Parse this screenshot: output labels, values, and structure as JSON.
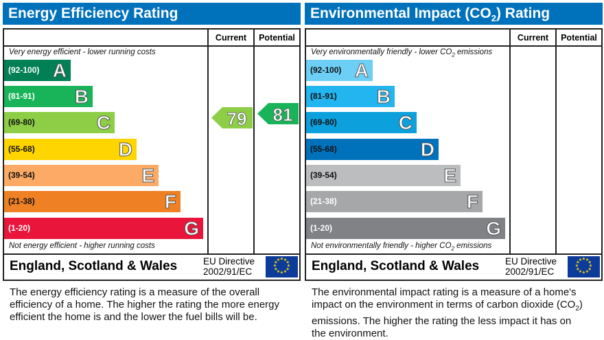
{
  "chart_data": [
    {
      "type": "table",
      "title": "Energy Efficiency Rating",
      "columns": [
        "Current",
        "Potential"
      ],
      "top_note": "Very energy efficient - lower running costs",
      "bottom_note": "Not energy efficient - higher running costs",
      "bands": [
        {
          "letter": "A",
          "range": "(92-100)",
          "color": "#008054",
          "text_color": "#ffffff"
        },
        {
          "letter": "B",
          "range": "(81-91)",
          "color": "#19b459",
          "text_color": "#ffffff"
        },
        {
          "letter": "C",
          "range": "(69-80)",
          "color": "#8dce46",
          "text_color": "#111111"
        },
        {
          "letter": "D",
          "range": "(55-68)",
          "color": "#ffd500",
          "text_color": "#111111"
        },
        {
          "letter": "E",
          "range": "(39-54)",
          "color": "#fcaa65",
          "text_color": "#111111"
        },
        {
          "letter": "F",
          "range": "(21-38)",
          "color": "#ef8023",
          "text_color": "#111111"
        },
        {
          "letter": "G",
          "range": "(1-20)",
          "color": "#e9153b",
          "text_color": "#ffffff"
        }
      ],
      "current": {
        "value": 79,
        "band": "C",
        "color": "#8dce46"
      },
      "potential": {
        "value": 81,
        "band": "B",
        "color": "#19b459"
      },
      "region": "England, Scotland & Wales",
      "directive_line1": "EU Directive",
      "directive_line2": "2002/91/EC",
      "description": "The energy efficiency rating is a measure of the overall efficiency of a home. The higher the rating the more energy efficient the home is and the lower the fuel bills will be."
    },
    {
      "type": "table",
      "title": "Environmental Impact (CO",
      "title_sub": "2",
      "title_end": ") Rating",
      "columns": [
        "Current",
        "Potential"
      ],
      "top_note": "Very environmentally friendly - lower CO",
      "top_note_end": " emissions",
      "bottom_note": "Not environmentally friendly - higher CO",
      "bottom_note_end": " emissions",
      "bands": [
        {
          "letter": "A",
          "range": "(92-100)",
          "color": "#6dcff6",
          "text_color": "#111111"
        },
        {
          "letter": "B",
          "range": "(81-91)",
          "color": "#22b5f0",
          "text_color": "#111111"
        },
        {
          "letter": "C",
          "range": "(69-80)",
          "color": "#0ca0dc",
          "text_color": "#111111"
        },
        {
          "letter": "D",
          "range": "(55-68)",
          "color": "#0072bc",
          "text_color": "#111111"
        },
        {
          "letter": "E",
          "range": "(39-54)",
          "color": "#bbbdbf",
          "text_color": "#111111"
        },
        {
          "letter": "F",
          "range": "(21-38)",
          "color": "#a5a7a9",
          "text_color": "#ffffff"
        },
        {
          "letter": "G",
          "range": "(1-20)",
          "color": "#808285",
          "text_color": "#ffffff"
        }
      ],
      "region": "England, Scotland & Wales",
      "directive_line1": "EU Directive",
      "directive_line2": "2002/91/EC",
      "description": "The environmental impact rating is a measure of a home's impact on the environment in terms of carbon dioxide (CO",
      "description_sub": "2",
      "description_end": ") emissions. The higher the rating the less impact it has on the environment."
    }
  ]
}
